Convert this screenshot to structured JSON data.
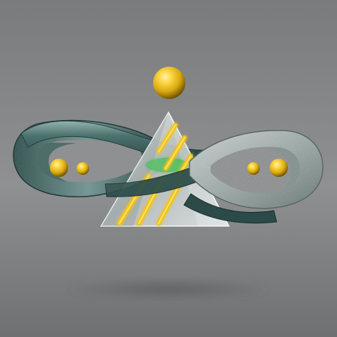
{
  "scene": {
    "background_top": "#7a7b7d",
    "background_mid": "#8f9092",
    "background_bottom": "#6f7072",
    "ribbon_color": "#2f5652",
    "ribbon_highlight": "#7fa4a0",
    "ribbon_dark": "#163230",
    "glass_color": "#d6dcdc",
    "glow_stripe_color": "#f2c21a",
    "glow_stripe_core": "#ffe66b",
    "green_glow": "#38c24a",
    "gold_light": "#ffe27a",
    "gold_mid": "#d9a90f",
    "gold_dark": "#7a5a00",
    "shadow_color": "#555658"
  },
  "objects": {
    "infinity_ribbon_icon": "infinity-ribbon-icon",
    "glass_pyramid_icon": "glass-pyramid-icon",
    "gold_sphere_icon": "gold-sphere-icon",
    "sphere_count": 5,
    "glow_stripe_count": 3
  }
}
